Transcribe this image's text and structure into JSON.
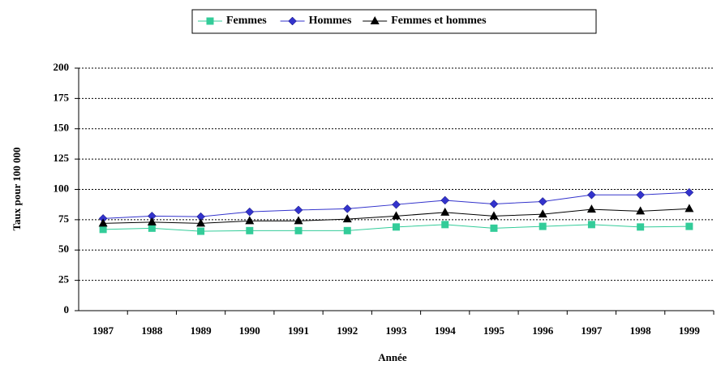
{
  "chart_data": {
    "type": "line",
    "xlabel": "Année",
    "ylabel": "Taux pour 100 000",
    "categories": [
      "1987",
      "1988",
      "1989",
      "1990",
      "1991",
      "1992",
      "1993",
      "1994",
      "1995",
      "1996",
      "1997",
      "1998",
      "1999"
    ],
    "series": [
      {
        "name": "Femmes",
        "color": "#33cc99",
        "marker": "square",
        "values": [
          67,
          68,
          65.5,
          66,
          66,
          66,
          69,
          71,
          68,
          69.5,
          71,
          69,
          69.5
        ]
      },
      {
        "name": "Hommes",
        "color": "#3333cc",
        "marker": "diamond",
        "values": [
          76,
          78,
          77.5,
          81.5,
          83,
          84,
          87.5,
          91,
          88,
          90,
          95.5,
          95.5,
          97.5
        ]
      },
      {
        "name": "Femmes et hommes",
        "color": "#000000",
        "marker": "triangle",
        "values": [
          72,
          73,
          72,
          74,
          74,
          75.5,
          78,
          81,
          78,
          79.5,
          83.5,
          82,
          84
        ]
      }
    ],
    "ylim": [
      0,
      200
    ],
    "yticks": [
      0,
      25,
      50,
      75,
      100,
      125,
      150,
      175,
      200
    ],
    "grid": true,
    "legend": "top"
  }
}
